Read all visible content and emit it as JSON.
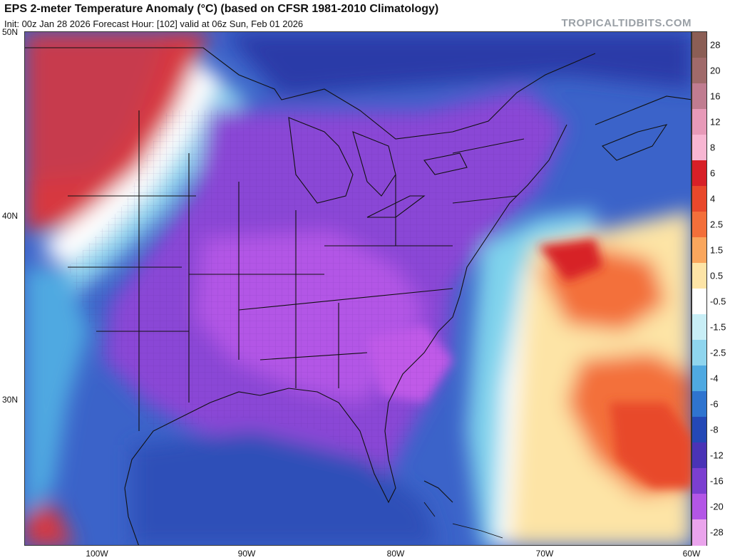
{
  "header": {
    "title": "EPS 2-meter Temperature Anomaly (°C) (based on CFSR 1981-2010 Climatology)",
    "subtitle": "Init: 00z Jan 28 2026   Forecast Hour: [102]   valid at 06z Sun, Feb 01 2026",
    "credit": "TROPICALTIDBITS.COM"
  },
  "map": {
    "lat_labels": [
      "50N",
      "40N",
      "30N"
    ],
    "lon_labels": [
      "100W",
      "90W",
      "80W",
      "70W",
      "60W"
    ]
  },
  "colorbar": {
    "labels": [
      "28",
      "20",
      "16",
      "12",
      "8",
      "6",
      "4",
      "2.5",
      "1.5",
      "0.5",
      "-0.5",
      "-1.5",
      "-2.5",
      "-4",
      "-6",
      "-8",
      "-12",
      "-16",
      "-20",
      "-28"
    ],
    "colors": [
      "#8b5e55",
      "#a06a6a",
      "#c07c90",
      "#e79ab8",
      "#f7b6d2",
      "#d72027",
      "#e8482b",
      "#f36f3a",
      "#f9a65d",
      "#fde4a6",
      "#ffffff",
      "#c8eef6",
      "#8fd5ee",
      "#4fa9e1",
      "#2f74cf",
      "#2448b6",
      "#4a33b6",
      "#7b3fd0",
      "#b356e6",
      "#eaa4ec"
    ]
  },
  "colors": {
    "deep_cold": "#2a2f9e",
    "cold_purple": "#8a46d6",
    "magenta": "#b356e6",
    "blue": "#3568cc",
    "cyan": "#7fd3ec",
    "white": "#ffffff",
    "warm_yellow": "#fde4a6",
    "orange": "#f36f3a",
    "red": "#d72027",
    "pink_red": "#d7505e"
  }
}
